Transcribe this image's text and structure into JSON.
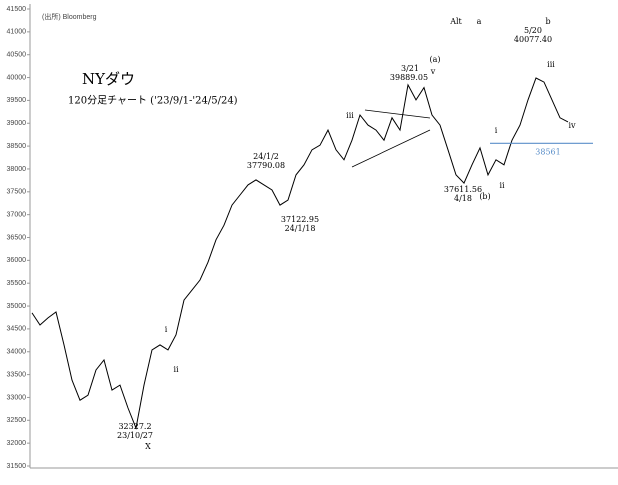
{
  "chart_data": {
    "type": "line",
    "title": "NYダウ",
    "subtitle": "120分足チャート ('23/9/1-'24/5/24)",
    "source": "(出所) Bloomberg",
    "values": [
      34850,
      34585,
      34740,
      34870,
      34150,
      33380,
      32940,
      33050,
      33600,
      33820,
      33160,
      33270,
      32770,
      32330,
      33270,
      34040,
      34150,
      34040,
      34370,
      35130,
      35350,
      35570,
      35960,
      36450,
      36770,
      37210,
      37430,
      37650,
      37760,
      37650,
      37540,
      37210,
      37320,
      37870,
      38090,
      38420,
      38520,
      38850,
      38420,
      38200,
      38630,
      39180,
      38960,
      38850,
      38630,
      39120,
      38850,
      39840,
      39510,
      39780,
      39180,
      38960,
      38420,
      37870,
      37690,
      38090,
      38460,
      37870,
      38200,
      38090,
      38630,
      38960,
      39510,
      39990,
      39900,
      39510,
      39120,
      39030
    ],
    "color": "#000000",
    "reference_line": 38561,
    "reference_color": "#5b8fc9",
    "ylim": [
      31500,
      41500
    ],
    "yticks": [
      31500,
      32000,
      32500,
      33000,
      33500,
      34000,
      34500,
      35000,
      35500,
      36000,
      36500,
      37000,
      37500,
      38000,
      38500,
      39000,
      39500,
      40000,
      40500,
      41000,
      41500
    ],
    "annotations": [
      "Alt",
      "a",
      "b",
      "(a)",
      "v",
      "3/21",
      "39889.05",
      "iii",
      "24/1/2",
      "37790.08",
      "37122.95",
      "24/1/18",
      "32327.2",
      "23/10/27",
      "X",
      "i",
      "ii",
      "37611.56",
      "4/18",
      "(b)",
      "i",
      "ii",
      "5/20",
      "40077.40",
      "iii",
      "iv"
    ]
  }
}
